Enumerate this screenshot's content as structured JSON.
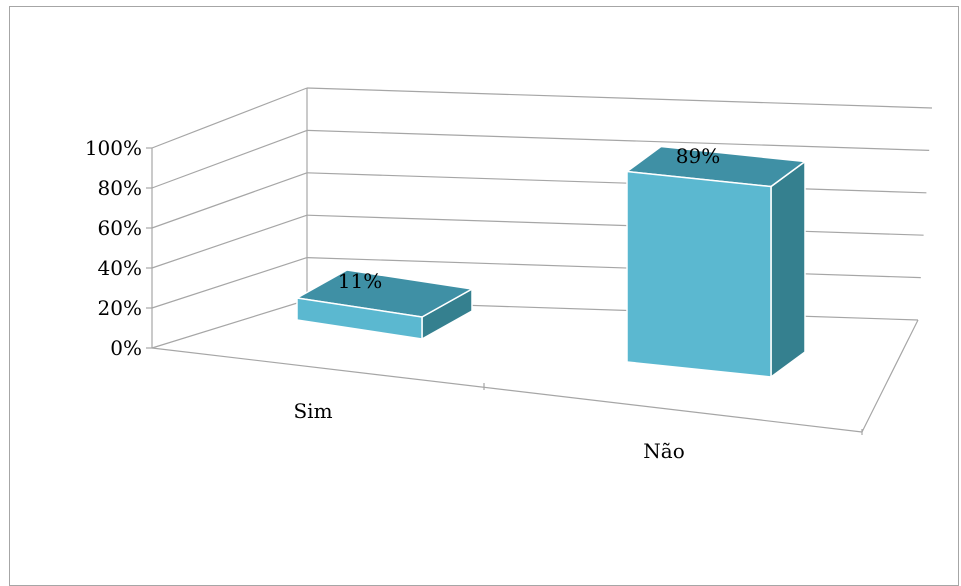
{
  "chart_data": {
    "type": "bar",
    "style": "3d-column",
    "categories": [
      "Sim",
      "Não"
    ],
    "values": [
      11,
      89
    ],
    "data_labels": [
      "11%",
      "89%"
    ],
    "ylim": [
      0,
      100
    ],
    "ytick_values": [
      0,
      20,
      40,
      60,
      80,
      100
    ],
    "ytick_labels": [
      "0%",
      "20%",
      "40%",
      "60%",
      "80%",
      "100%"
    ],
    "grid": true,
    "legend": "none",
    "colors": {
      "bar_front": "#5bb8d0",
      "bar_top": "#3f90a5",
      "bar_side": "#35808f",
      "gridline": "#a6a6a6",
      "axis": "#a6a6a6"
    }
  }
}
